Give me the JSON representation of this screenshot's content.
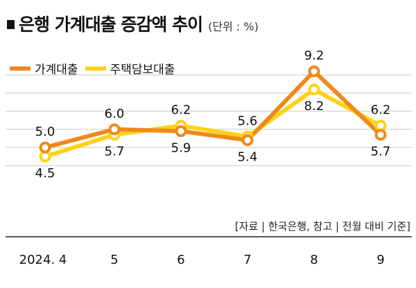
{
  "title": "은행 가계대출 증감액 추이",
  "unit": "(단위 : %)",
  "source": "[자료 | 한국은행, 참고 | 전월 대비 기준]",
  "colors": {
    "series1": "#EE8A1A",
    "series2": "#FFD219",
    "grid": "#C9C9C9",
    "axis": "#222222"
  },
  "chart_data": {
    "type": "line",
    "title": "은행 가계대출 증감액 추이",
    "unit": "(단위 : %)",
    "categories": [
      "2024. 4",
      "5",
      "6",
      "7",
      "8",
      "9"
    ],
    "series": [
      {
        "name": "가계대출",
        "values": [
          5.0,
          6.0,
          5.9,
          5.4,
          9.2,
          5.7
        ],
        "labels": [
          "5.0",
          "6.0",
          "5.9",
          "5.4",
          "9.2",
          "5.7"
        ]
      },
      {
        "name": "주택담보대출",
        "values": [
          4.5,
          5.7,
          6.2,
          5.6,
          8.2,
          6.2
        ],
        "labels": [
          "4.5",
          "5.7",
          "6.2",
          "5.6",
          "8.2",
          "6.2"
        ]
      }
    ],
    "y_gridlines": [
      4.0,
      5.0,
      6.0,
      7.0,
      8.0,
      9.0
    ],
    "ylim": [
      3.2,
      10.2
    ],
    "grid": true,
    "legend": "top-left"
  }
}
